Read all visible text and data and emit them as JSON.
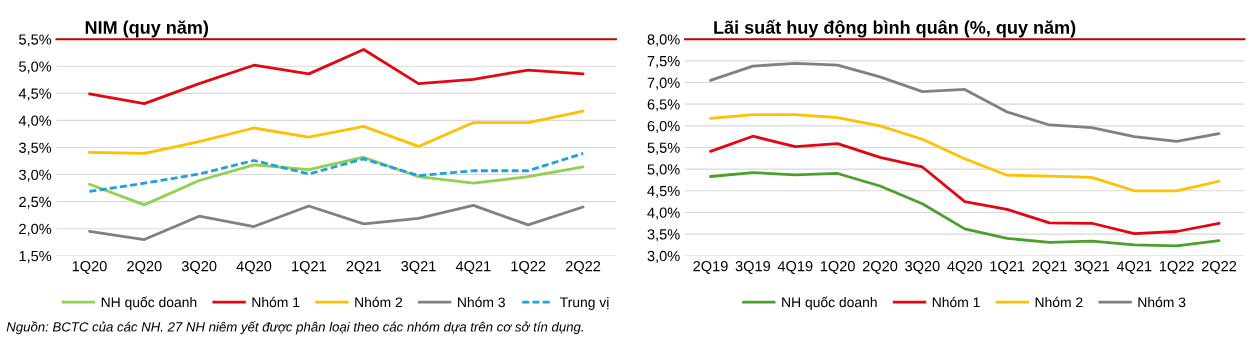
{
  "chart_data": [
    {
      "type": "line",
      "title": "NIM (quy năm)",
      "categories": [
        "1Q20",
        "2Q20",
        "3Q20",
        "4Q20",
        "1Q21",
        "2Q21",
        "3Q21",
        "4Q21",
        "1Q22",
        "2Q22"
      ],
      "series": [
        {
          "name": "NH quốc doanh",
          "color": "#92d050",
          "values": [
            2.82,
            2.44,
            2.89,
            3.18,
            3.09,
            3.32,
            2.96,
            2.84,
            2.96,
            3.14
          ]
        },
        {
          "name": "Nhóm 1",
          "color": "#e30613",
          "values": [
            4.49,
            4.31,
            4.68,
            5.02,
            4.86,
            5.31,
            4.68,
            4.76,
            4.93,
            4.86
          ]
        },
        {
          "name": "Nhóm 2",
          "color": "#ffc000",
          "values": [
            3.41,
            3.39,
            3.61,
            3.86,
            3.69,
            3.89,
            3.52,
            3.96,
            3.96,
            4.17
          ]
        },
        {
          "name": "Nhóm 3",
          "color": "#808080",
          "values": [
            1.95,
            1.8,
            2.23,
            2.04,
            2.42,
            2.09,
            2.19,
            2.43,
            2.07,
            2.4
          ]
        },
        {
          "name": "Trung vị",
          "color": "#1fa0e0",
          "line_style": "dashed",
          "values": [
            2.69,
            2.84,
            3.01,
            3.26,
            3.01,
            3.29,
            2.98,
            3.07,
            3.07,
            3.39
          ]
        }
      ],
      "ylim": [
        1.5,
        5.5
      ],
      "yticks": [
        {
          "value": 1.5,
          "label": "1,5%"
        },
        {
          "value": 2.0,
          "label": "2,0%"
        },
        {
          "value": 2.5,
          "label": "2,5%"
        },
        {
          "value": 3.0,
          "label": "3,0%"
        },
        {
          "value": 3.5,
          "label": "3,5%"
        },
        {
          "value": 4.0,
          "label": "4,0%"
        },
        {
          "value": 4.5,
          "label": "4,5%"
        },
        {
          "value": 5.0,
          "label": "5,0%"
        },
        {
          "value": 5.5,
          "label": "5,5%"
        }
      ],
      "grid": "y",
      "legend": "bottom",
      "marker": "none",
      "line_style": "solid",
      "annotations": [
        "Nguồn: BCTC của các NH. 27 NH niêm yết được phân loại theo các nhóm dựa trên cơ sở tín dụng."
      ]
    },
    {
      "type": "line",
      "title": "Lãi suất huy động bình quân (%, quy năm)",
      "categories": [
        "2Q19",
        "3Q19",
        "4Q19",
        "1Q20",
        "2Q20",
        "3Q20",
        "4Q20",
        "1Q21",
        "2Q21",
        "3Q21",
        "4Q21",
        "1Q22",
        "2Q22"
      ],
      "series": [
        {
          "name": "NH quốc doanh",
          "color": "#4aa02c",
          "values": [
            4.83,
            4.92,
            4.87,
            4.9,
            4.61,
            4.2,
            3.62,
            3.4,
            3.31,
            3.34,
            3.25,
            3.23,
            3.35
          ]
        },
        {
          "name": "Nhóm 1",
          "color": "#e30613",
          "values": [
            5.41,
            5.76,
            5.52,
            5.59,
            5.27,
            5.05,
            4.25,
            4.07,
            3.76,
            3.75,
            3.51,
            3.56,
            3.75
          ]
        },
        {
          "name": "Nhóm 2",
          "color": "#ffc000",
          "values": [
            6.17,
            6.26,
            6.26,
            6.19,
            6.0,
            5.69,
            5.24,
            4.86,
            4.84,
            4.81,
            4.5,
            4.5,
            4.72
          ]
        },
        {
          "name": "Nhóm 3",
          "color": "#808080",
          "values": [
            7.05,
            7.38,
            7.44,
            7.4,
            7.13,
            6.79,
            6.84,
            6.32,
            6.02,
            5.96,
            5.75,
            5.64,
            5.82
          ]
        }
      ],
      "ylim": [
        3.0,
        8.0
      ],
      "yticks": [
        {
          "value": 3.0,
          "label": "3,0%"
        },
        {
          "value": 3.5,
          "label": "3,5%"
        },
        {
          "value": 4.0,
          "label": "4,0%"
        },
        {
          "value": 4.5,
          "label": "4,5%"
        },
        {
          "value": 5.0,
          "label": "5,0%"
        },
        {
          "value": 5.5,
          "label": "5,5%"
        },
        {
          "value": 6.0,
          "label": "6,0%"
        },
        {
          "value": 6.5,
          "label": "6,5%"
        },
        {
          "value": 7.0,
          "label": "7,0%"
        },
        {
          "value": 7.5,
          "label": "7,5%"
        },
        {
          "value": 8.0,
          "label": "8,0%"
        }
      ],
      "grid": "y",
      "legend": "bottom",
      "marker": "none",
      "line_style": "solid"
    }
  ]
}
